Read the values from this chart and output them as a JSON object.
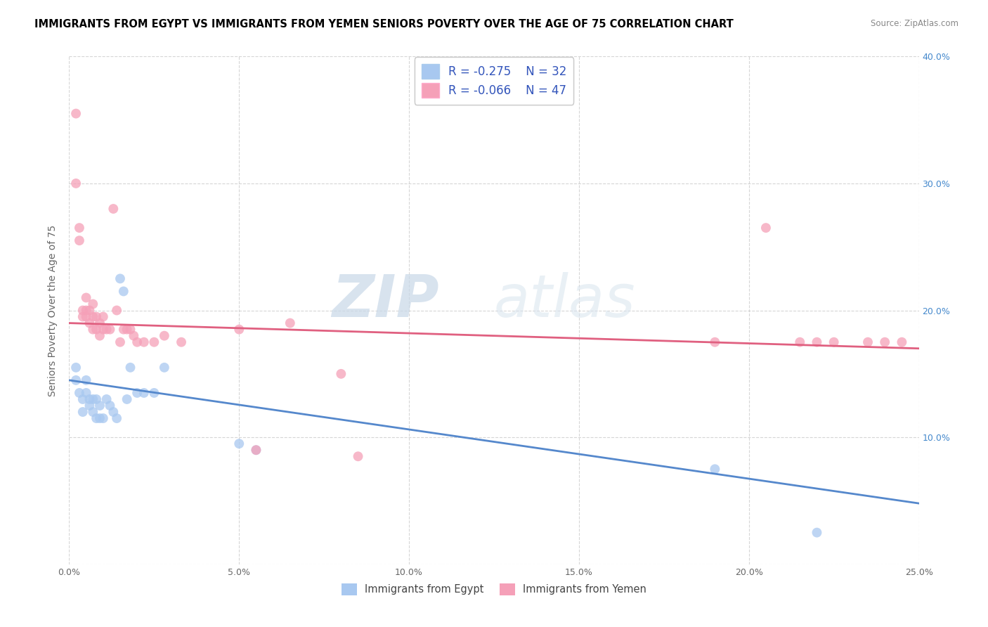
{
  "title": "IMMIGRANTS FROM EGYPT VS IMMIGRANTS FROM YEMEN SENIORS POVERTY OVER THE AGE OF 75 CORRELATION CHART",
  "source": "Source: ZipAtlas.com",
  "ylabel": "Seniors Poverty Over the Age of 75",
  "xlim": [
    0.0,
    0.25
  ],
  "ylim": [
    0.0,
    0.4
  ],
  "xticks": [
    0.0,
    0.05,
    0.1,
    0.15,
    0.2,
    0.25
  ],
  "yticks": [
    0.0,
    0.1,
    0.2,
    0.3,
    0.4
  ],
  "legend_egypt_r": "-0.275",
  "legend_egypt_n": "32",
  "legend_yemen_r": "-0.066",
  "legend_yemen_n": "47",
  "egypt_color": "#a8c8f0",
  "egypt_line_color": "#5588cc",
  "yemen_color": "#f5a0b8",
  "yemen_line_color": "#e06080",
  "watermark_zip": "ZIP",
  "watermark_atlas": "atlas",
  "egypt_line_start_y": 0.145,
  "egypt_line_end_y": 0.048,
  "yemen_line_start_y": 0.19,
  "yemen_line_end_y": 0.17,
  "egypt_scatter_x": [
    0.002,
    0.002,
    0.003,
    0.004,
    0.004,
    0.005,
    0.005,
    0.006,
    0.006,
    0.007,
    0.007,
    0.008,
    0.008,
    0.009,
    0.009,
    0.01,
    0.011,
    0.012,
    0.013,
    0.014,
    0.015,
    0.016,
    0.017,
    0.018,
    0.02,
    0.022,
    0.025,
    0.028,
    0.05,
    0.055,
    0.19,
    0.22
  ],
  "egypt_scatter_y": [
    0.155,
    0.145,
    0.135,
    0.13,
    0.12,
    0.145,
    0.135,
    0.13,
    0.125,
    0.13,
    0.12,
    0.13,
    0.115,
    0.125,
    0.115,
    0.115,
    0.13,
    0.125,
    0.12,
    0.115,
    0.225,
    0.215,
    0.13,
    0.155,
    0.135,
    0.135,
    0.135,
    0.155,
    0.095,
    0.09,
    0.075,
    0.025
  ],
  "yemen_scatter_x": [
    0.002,
    0.002,
    0.003,
    0.003,
    0.004,
    0.004,
    0.005,
    0.005,
    0.005,
    0.006,
    0.006,
    0.007,
    0.007,
    0.007,
    0.008,
    0.008,
    0.009,
    0.009,
    0.01,
    0.01,
    0.011,
    0.012,
    0.013,
    0.014,
    0.015,
    0.016,
    0.017,
    0.018,
    0.019,
    0.02,
    0.022,
    0.025,
    0.028,
    0.033,
    0.05,
    0.055,
    0.065,
    0.08,
    0.085,
    0.19,
    0.205,
    0.215,
    0.22,
    0.225,
    0.235,
    0.24,
    0.245
  ],
  "yemen_scatter_y": [
    0.355,
    0.3,
    0.265,
    0.255,
    0.2,
    0.195,
    0.21,
    0.2,
    0.195,
    0.2,
    0.19,
    0.205,
    0.195,
    0.185,
    0.195,
    0.185,
    0.19,
    0.18,
    0.195,
    0.185,
    0.185,
    0.185,
    0.28,
    0.2,
    0.175,
    0.185,
    0.185,
    0.185,
    0.18,
    0.175,
    0.175,
    0.175,
    0.18,
    0.175,
    0.185,
    0.09,
    0.19,
    0.15,
    0.085,
    0.175,
    0.265,
    0.175,
    0.175,
    0.175,
    0.175,
    0.175,
    0.175
  ],
  "background_color": "#ffffff",
  "grid_color": "#cccccc",
  "title_fontsize": 10.5,
  "axis_fontsize": 10,
  "tick_fontsize": 9,
  "legend_fontsize": 12
}
